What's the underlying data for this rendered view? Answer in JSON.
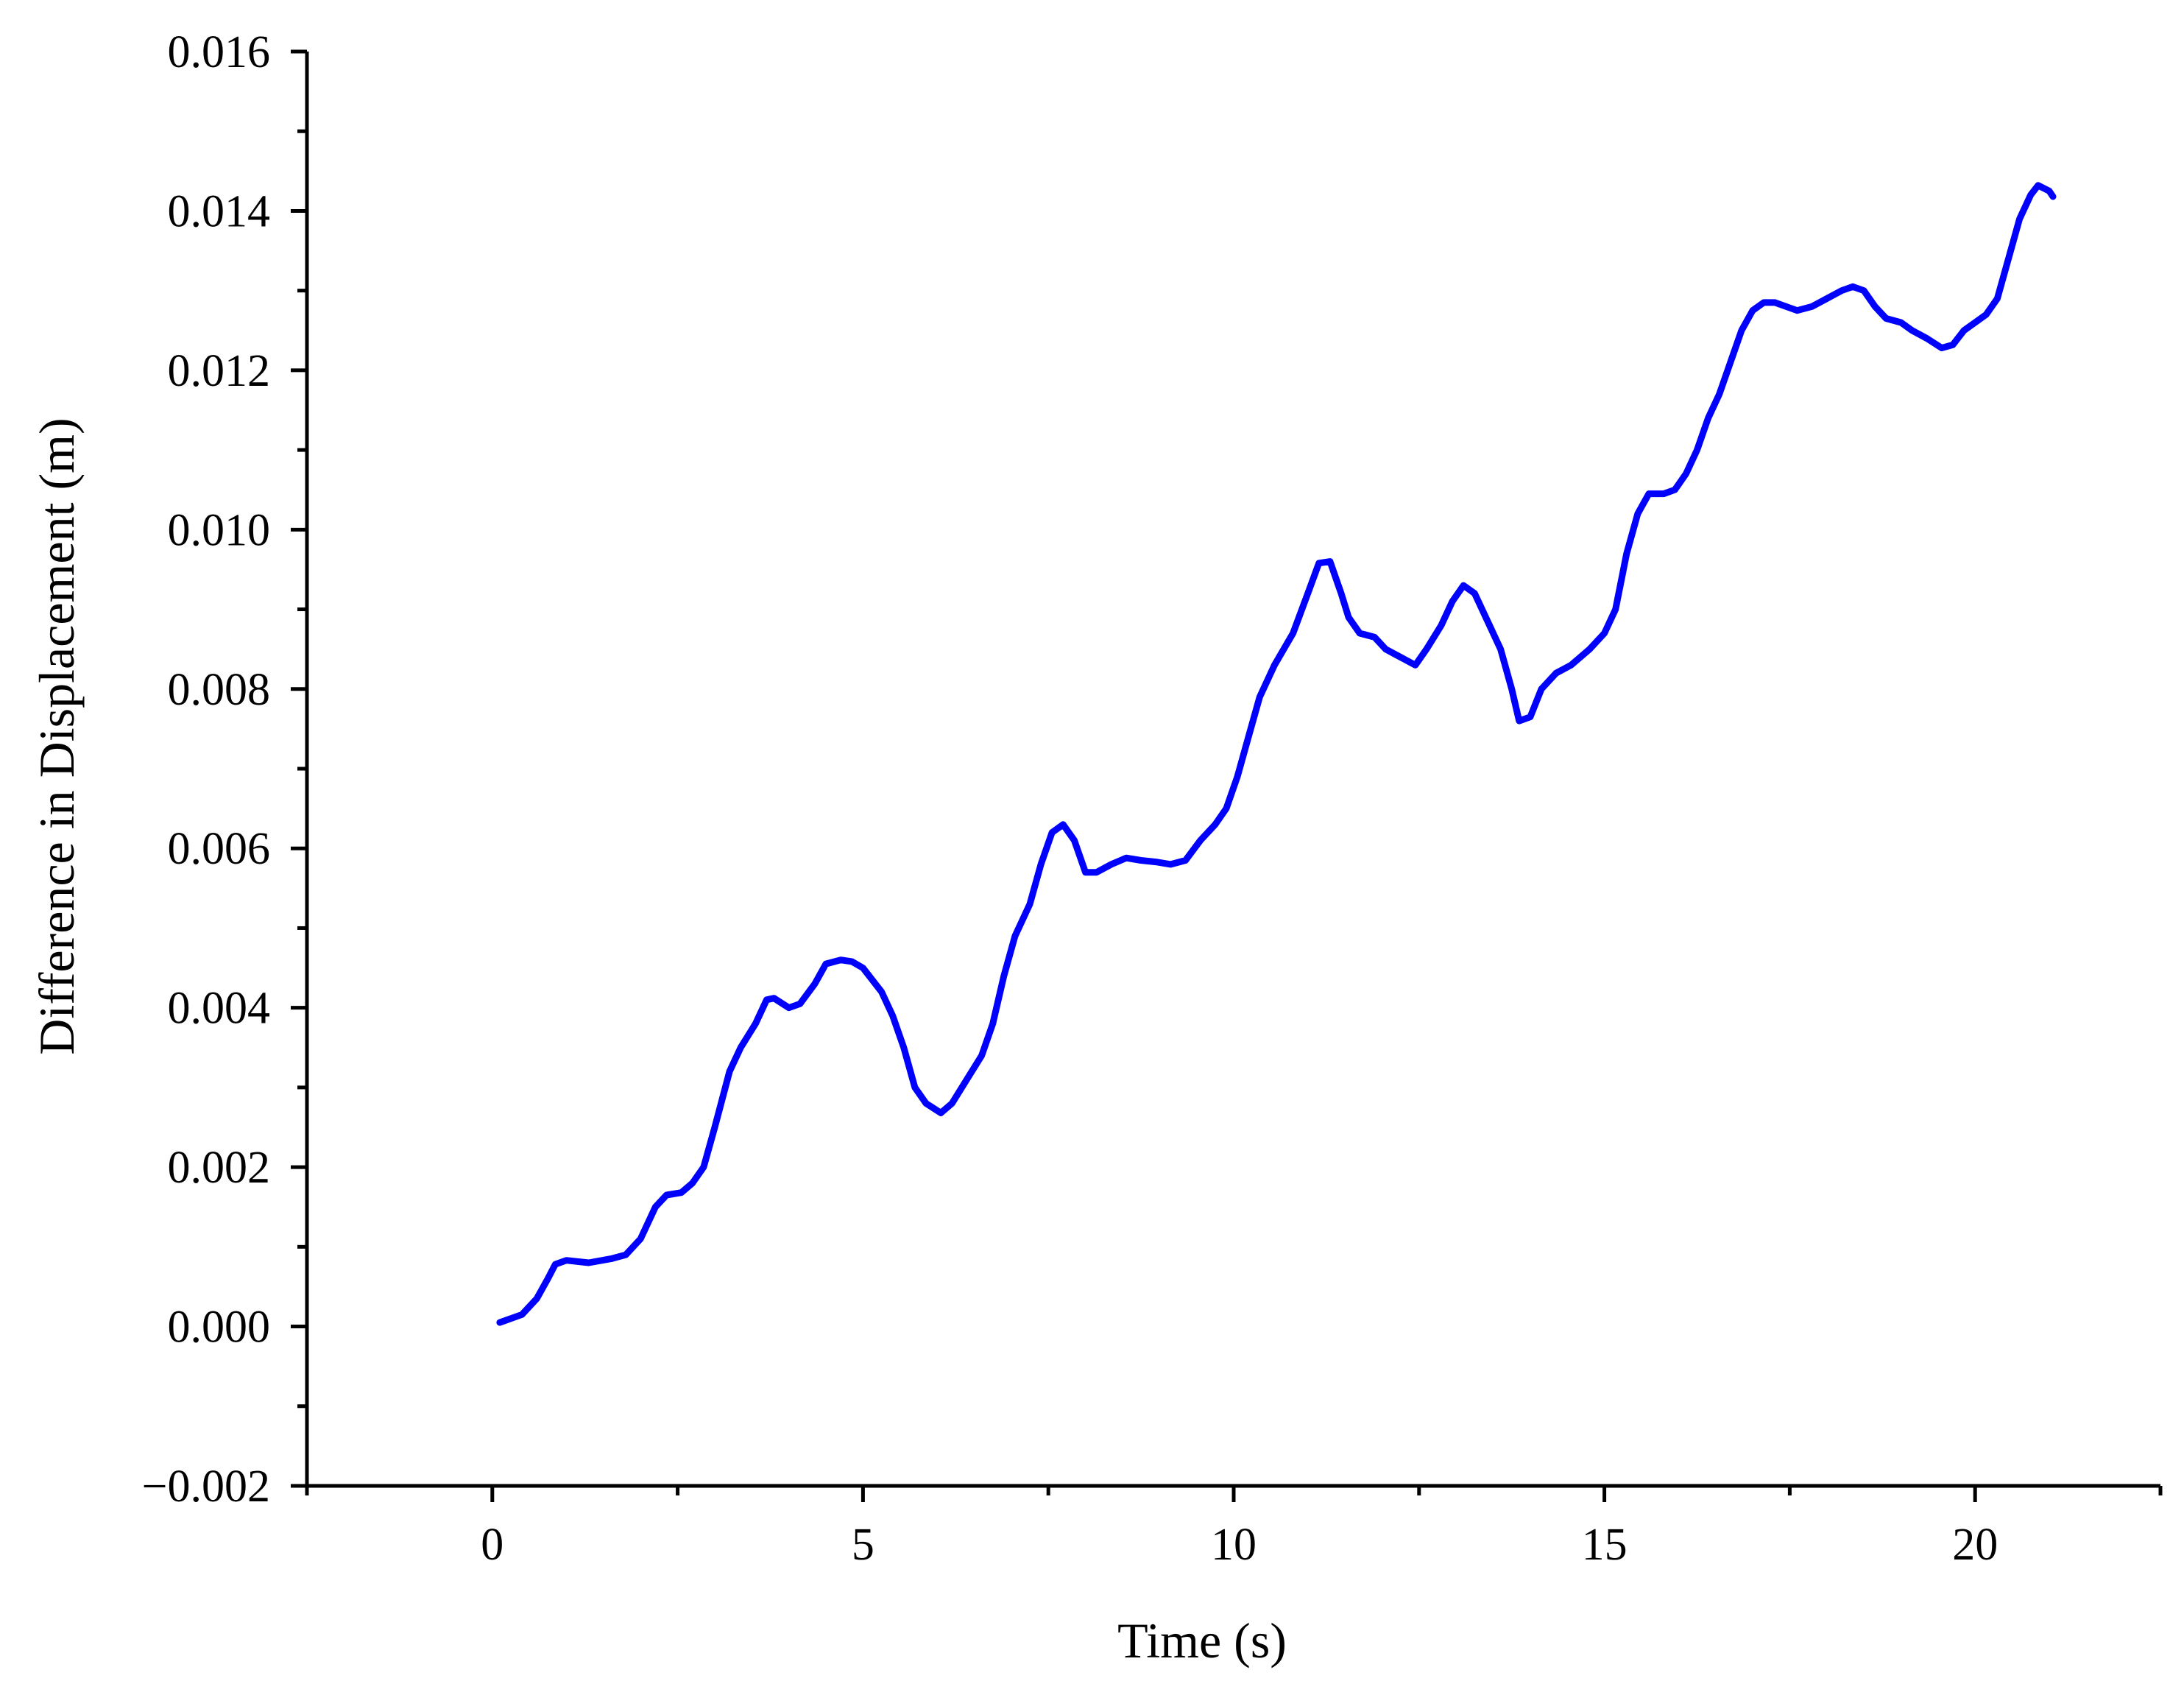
{
  "chart_data": {
    "type": "line",
    "title": "",
    "xlabel": "Time (s)",
    "ylabel": "Difference in Displacement (m)",
    "xlim": [
      -2.5,
      22.5
    ],
    "ylim": [
      -0.002,
      0.016
    ],
    "x_ticks": [
      0,
      5,
      10,
      15,
      20
    ],
    "x_tick_labels": [
      "0",
      "5",
      "10",
      "15",
      "20"
    ],
    "x_minor_ticks": [
      -2.5,
      2.5,
      7.5,
      12.5,
      17.5,
      22.5
    ],
    "y_ticks": [
      -0.002,
      0.0,
      0.002,
      0.004,
      0.006,
      0.008,
      0.01,
      0.012,
      0.014,
      0.016
    ],
    "y_tick_labels": [
      "−0.002",
      "0.000",
      "0.002",
      "0.004",
      "0.006",
      "0.008",
      "0.010",
      "0.012",
      "0.014",
      "0.016"
    ],
    "y_minor_ticks": [
      -0.001,
      0.001,
      0.003,
      0.005,
      0.007,
      0.009,
      0.011,
      0.013,
      0.015
    ],
    "grid": false,
    "legend": false,
    "series": [
      {
        "color": "#0000ff",
        "points": [
          [
            0.1,
            5e-05
          ],
          [
            0.4,
            0.00015
          ],
          [
            0.6,
            0.00035
          ],
          [
            0.75,
            0.0006
          ],
          [
            0.85,
            0.00078
          ],
          [
            1.0,
            0.00083
          ],
          [
            1.3,
            0.0008
          ],
          [
            1.6,
            0.00085
          ],
          [
            1.8,
            0.0009
          ],
          [
            2.0,
            0.0011
          ],
          [
            2.2,
            0.0015
          ],
          [
            2.35,
            0.00165
          ],
          [
            2.55,
            0.00168
          ],
          [
            2.7,
            0.0018
          ],
          [
            2.85,
            0.002
          ],
          [
            3.0,
            0.0025
          ],
          [
            3.2,
            0.0032
          ],
          [
            3.35,
            0.0035
          ],
          [
            3.55,
            0.0038
          ],
          [
            3.7,
            0.0041
          ],
          [
            3.8,
            0.00412
          ],
          [
            4.0,
            0.004
          ],
          [
            4.15,
            0.00405
          ],
          [
            4.35,
            0.0043
          ],
          [
            4.5,
            0.00455
          ],
          [
            4.7,
            0.0046
          ],
          [
            4.85,
            0.00458
          ],
          [
            5.0,
            0.0045
          ],
          [
            5.25,
            0.0042
          ],
          [
            5.4,
            0.0039
          ],
          [
            5.55,
            0.0035
          ],
          [
            5.7,
            0.003
          ],
          [
            5.85,
            0.0028
          ],
          [
            6.05,
            0.00268
          ],
          [
            6.2,
            0.0028
          ],
          [
            6.4,
            0.0031
          ],
          [
            6.6,
            0.0034
          ],
          [
            6.75,
            0.0038
          ],
          [
            6.9,
            0.0044
          ],
          [
            7.05,
            0.0049
          ],
          [
            7.25,
            0.0053
          ],
          [
            7.4,
            0.0058
          ],
          [
            7.55,
            0.0062
          ],
          [
            7.7,
            0.0063
          ],
          [
            7.85,
            0.0061
          ],
          [
            8.0,
            0.0057
          ],
          [
            8.15,
            0.0057
          ],
          [
            8.35,
            0.0058
          ],
          [
            8.55,
            0.00588
          ],
          [
            8.75,
            0.00585
          ],
          [
            8.95,
            0.00583
          ],
          [
            9.15,
            0.0058
          ],
          [
            9.35,
            0.00585
          ],
          [
            9.55,
            0.0061
          ],
          [
            9.75,
            0.0063
          ],
          [
            9.9,
            0.0065
          ],
          [
            10.05,
            0.0069
          ],
          [
            10.2,
            0.0074
          ],
          [
            10.35,
            0.0079
          ],
          [
            10.55,
            0.0083
          ],
          [
            10.8,
            0.0087
          ],
          [
            11.0,
            0.0092
          ],
          [
            11.15,
            0.00958
          ],
          [
            11.3,
            0.0096
          ],
          [
            11.45,
            0.0092
          ],
          [
            11.55,
            0.0089
          ],
          [
            11.7,
            0.0087
          ],
          [
            11.9,
            0.00865
          ],
          [
            12.05,
            0.0085
          ],
          [
            12.25,
            0.0084
          ],
          [
            12.45,
            0.0083
          ],
          [
            12.6,
            0.0085
          ],
          [
            12.8,
            0.0088
          ],
          [
            12.95,
            0.0091
          ],
          [
            13.1,
            0.0093
          ],
          [
            13.25,
            0.0092
          ],
          [
            13.45,
            0.0088
          ],
          [
            13.6,
            0.0085
          ],
          [
            13.75,
            0.008
          ],
          [
            13.85,
            0.0076
          ],
          [
            14.0,
            0.00765
          ],
          [
            14.15,
            0.008
          ],
          [
            14.35,
            0.0082
          ],
          [
            14.55,
            0.0083
          ],
          [
            14.8,
            0.0085
          ],
          [
            15.0,
            0.0087
          ],
          [
            15.15,
            0.009
          ],
          [
            15.3,
            0.0097
          ],
          [
            15.45,
            0.0102
          ],
          [
            15.6,
            0.01045
          ],
          [
            15.8,
            0.01045
          ],
          [
            15.95,
            0.0105
          ],
          [
            16.1,
            0.0107
          ],
          [
            16.25,
            0.011
          ],
          [
            16.4,
            0.0114
          ],
          [
            16.55,
            0.0117
          ],
          [
            16.7,
            0.0121
          ],
          [
            16.85,
            0.0125
          ],
          [
            17.0,
            0.01275
          ],
          [
            17.15,
            0.01285
          ],
          [
            17.3,
            0.01285
          ],
          [
            17.45,
            0.0128
          ],
          [
            17.6,
            0.01275
          ],
          [
            17.8,
            0.0128
          ],
          [
            18.0,
            0.0129
          ],
          [
            18.2,
            0.013
          ],
          [
            18.35,
            0.01305
          ],
          [
            18.5,
            0.013
          ],
          [
            18.65,
            0.0128
          ],
          [
            18.8,
            0.01265
          ],
          [
            19.0,
            0.0126
          ],
          [
            19.15,
            0.0125
          ],
          [
            19.35,
            0.0124
          ],
          [
            19.55,
            0.01228
          ],
          [
            19.7,
            0.01232
          ],
          [
            19.85,
            0.0125
          ],
          [
            20.0,
            0.0126
          ],
          [
            20.15,
            0.0127
          ],
          [
            20.3,
            0.0129
          ],
          [
            20.45,
            0.0134
          ],
          [
            20.6,
            0.0139
          ],
          [
            20.75,
            0.0142
          ],
          [
            20.85,
            0.01432
          ],
          [
            21.0,
            0.01425
          ],
          [
            21.05,
            0.01418
          ]
        ]
      }
    ]
  }
}
